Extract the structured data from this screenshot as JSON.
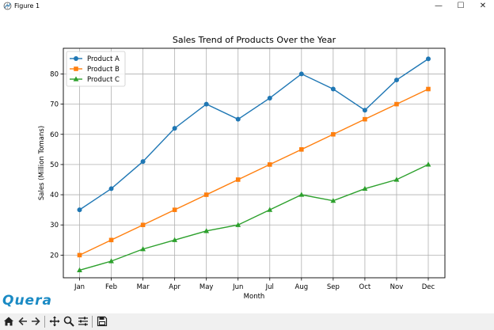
{
  "window": {
    "title": "Figure 1",
    "controls": {
      "minimize": "—",
      "maximize": "☐",
      "close": "✕"
    }
  },
  "brand": {
    "text": "Quera",
    "color": "#1a8ac4"
  },
  "toolbar": {
    "buttons": [
      "home-icon",
      "back-arrow-icon",
      "forward-arrow-icon",
      "pan-icon",
      "zoom-icon",
      "configure-subplots-icon",
      "save-icon"
    ]
  },
  "chart_data": {
    "type": "line",
    "title": "Sales Trend of Products Over the Year",
    "xlabel": "Month",
    "ylabel": "Sales (Million Tomans)",
    "categories": [
      "Jan",
      "Feb",
      "Mar",
      "Apr",
      "May",
      "Jun",
      "Jul",
      "Aug",
      "Sep",
      "Oct",
      "Nov",
      "Dec"
    ],
    "ylim": [
      12.5,
      88.5
    ],
    "yticks": [
      20,
      30,
      40,
      50,
      60,
      70,
      80
    ],
    "grid": true,
    "legend_position": "top-left",
    "series": [
      {
        "name": "Product A",
        "marker": "circle",
        "color": "#1f77b4",
        "values": [
          35,
          42,
          51,
          62,
          70,
          65,
          72,
          80,
          75,
          68,
          78,
          85
        ]
      },
      {
        "name": "Product B",
        "marker": "square",
        "color": "#ff7f0e",
        "values": [
          20,
          25,
          30,
          35,
          40,
          45,
          50,
          55,
          60,
          65,
          70,
          75
        ]
      },
      {
        "name": "Product C",
        "marker": "triangle",
        "color": "#2ca02c",
        "values": [
          15,
          18,
          22,
          25,
          28,
          30,
          35,
          40,
          38,
          42,
          45,
          50
        ]
      }
    ]
  }
}
